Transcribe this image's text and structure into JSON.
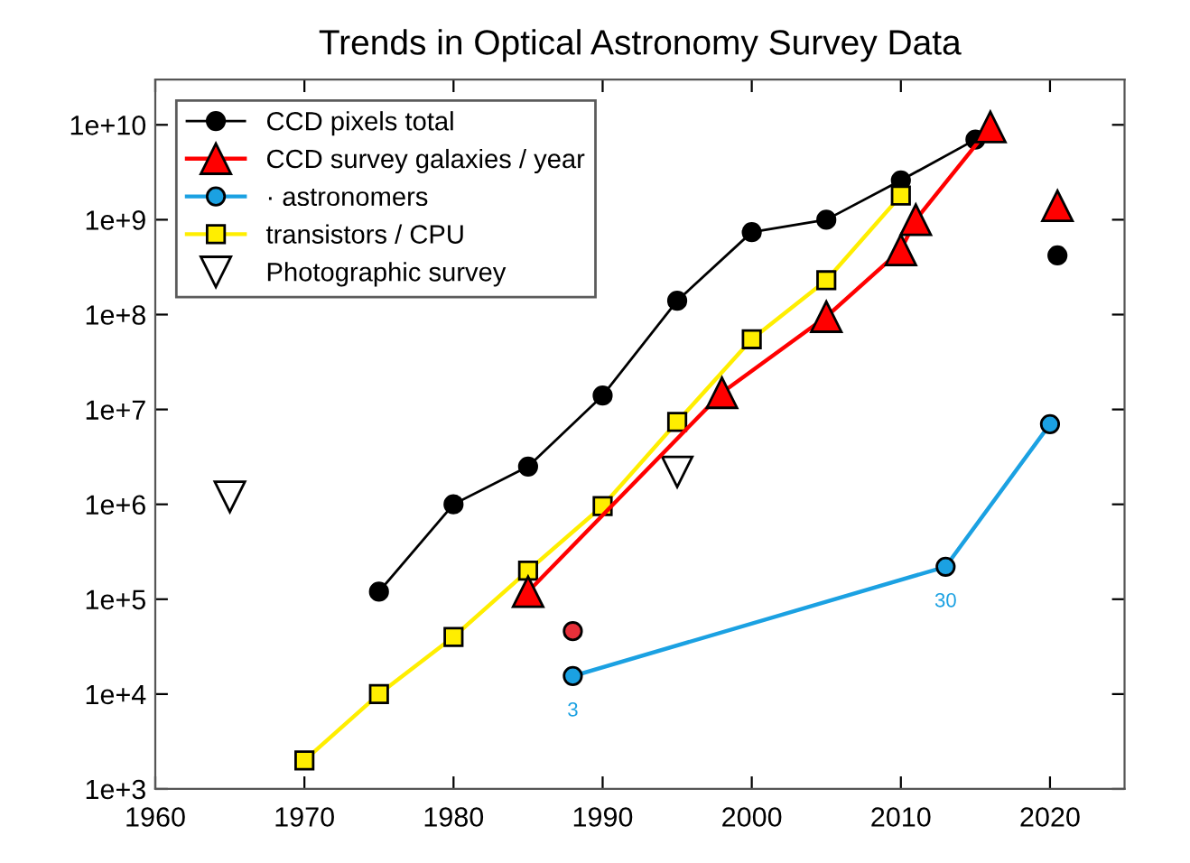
{
  "chart_data": {
    "type": "line",
    "title": "Trends in Optical Astronomy Survey Data",
    "log": "y",
    "xlim": [
      1960,
      2025
    ],
    "xticks": [
      1960,
      1970,
      1980,
      1990,
      2000,
      2010,
      2020
    ],
    "ylim": [
      1000,
      30000000000
    ],
    "yticks": [
      {
        "value": 1000,
        "label": "1e+3"
      },
      {
        "value": 10000,
        "label": "1e+4"
      },
      {
        "value": 100000,
        "label": "1e+5"
      },
      {
        "value": 1000000,
        "label": "1e+6"
      },
      {
        "value": 10000000,
        "label": "1e+7"
      },
      {
        "value": 100000000,
        "label": "1e+8"
      },
      {
        "value": 1000000000,
        "label": "1e+9"
      },
      {
        "value": 10000000000,
        "label": "1e+10"
      }
    ],
    "grid": false,
    "legend": "top left",
    "series": [
      {
        "name": "CCD pixels total",
        "color": "#000000",
        "marker": "circle",
        "x": [
          1975,
          1980,
          1985,
          1990,
          1995,
          2000,
          2005,
          2010,
          2015
        ],
        "values": [
          120000,
          1000000,
          2500000,
          14000000,
          140000000,
          740000000,
          1000000000,
          2600000000,
          7000000000
        ]
      },
      {
        "name": "CCD survey galaxies / year",
        "color": "#ff0000",
        "marker": "triangle",
        "x": [
          1985,
          1998,
          2005,
          2010,
          2011,
          2016
        ],
        "values": [
          120000,
          15000000,
          95000000,
          480000000,
          1000000000,
          9500000000
        ]
      },
      {
        "name": "· astronomers",
        "color": "#1ba1e2",
        "marker": "circle",
        "x": [
          1988,
          2013,
          2020
        ],
        "values": [
          15500,
          220000,
          7000000
        ]
      },
      {
        "name": "transistors / CPU",
        "color": "#ffee00",
        "marker": "square",
        "x": [
          1970,
          1975,
          1980,
          1985,
          1990,
          1995,
          2000,
          2005,
          2010
        ],
        "values": [
          2000,
          10000,
          40000,
          200000,
          960000,
          7400000,
          55000000,
          230000000,
          1800000000
        ]
      },
      {
        "name": "Photographic survey",
        "type": "scatter",
        "color": "#000000",
        "marker": "triangle_down",
        "x": [
          1965,
          1995
        ],
        "values": [
          1200000,
          2200000
        ]
      },
      {
        "type": "scatter",
        "color": "#000000",
        "marker": "circle",
        "x": [
          2020.5
        ],
        "values": [
          420000000
        ]
      },
      {
        "type": "scatter",
        "color": "#ff0000",
        "marker": "triangle",
        "x": [
          2020.5
        ],
        "values": [
          1400000000
        ]
      },
      {
        "type": "scatter",
        "color": "#e8303a",
        "marker": "circle",
        "x": [
          1988
        ],
        "values": [
          46000
        ]
      }
    ],
    "annotations": [
      {
        "text": "3",
        "x": 1988,
        "y": 15500
      },
      {
        "text": "30",
        "x": 2013,
        "y": 220000
      }
    ]
  }
}
